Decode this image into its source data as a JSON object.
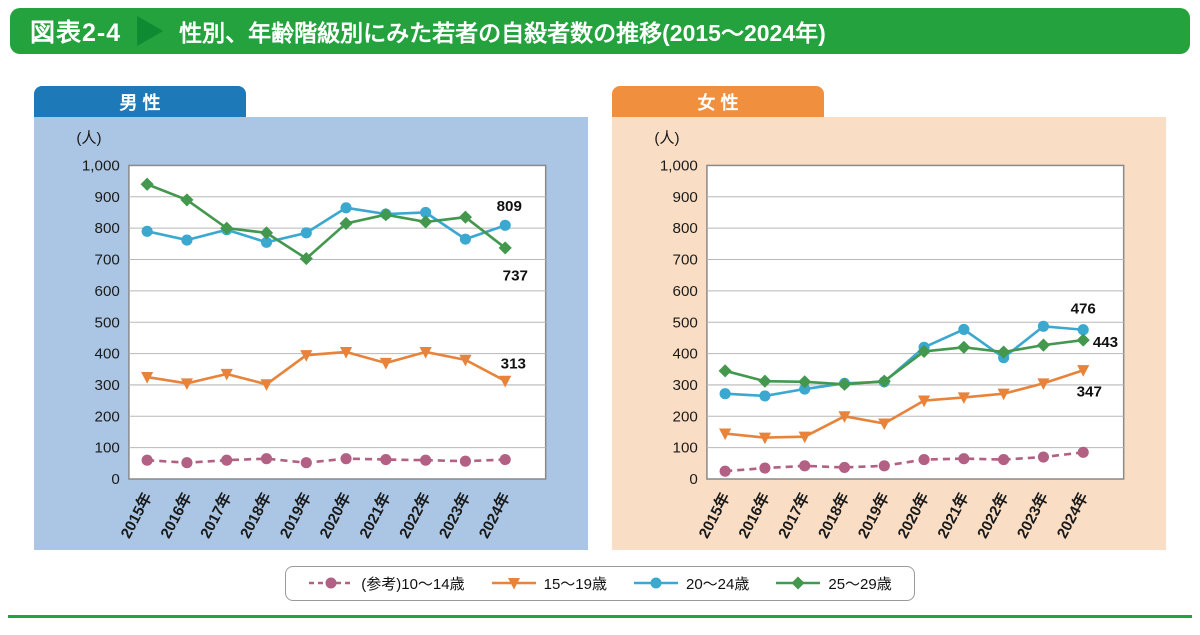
{
  "header": {
    "tag": "図表2-4",
    "title": "性別、年齢階級別にみた若者の自殺者数の推移(2015〜2024年)"
  },
  "colors": {
    "header_green": "#23a23d",
    "header_green_dark": "#0e8a33",
    "male_tab": "#1d79b8",
    "male_panel": "#aac6e4",
    "female_tab": "#f0903e",
    "female_panel": "#f9dec5",
    "age_10_14": "#b26084",
    "age_15_19": "#e8833b",
    "age_20_24": "#3ba8d0",
    "age_25_29": "#44984e",
    "grid_line": "#b8b8b8",
    "plot_border": "#8a8a8a"
  },
  "legend": {
    "items": [
      {
        "label": "(参考)10〜14歳",
        "marker": "circle",
        "dashed": true,
        "color_key": "age_10_14"
      },
      {
        "label": "15〜19歳",
        "marker": "triangle",
        "dashed": false,
        "color_key": "age_15_19"
      },
      {
        "label": "20〜24歳",
        "marker": "circle",
        "dashed": false,
        "color_key": "age_20_24"
      },
      {
        "label": "25〜29歳",
        "marker": "diamond",
        "dashed": false,
        "color_key": "age_25_29"
      }
    ]
  },
  "chart_data": [
    {
      "type": "line",
      "panel": "male",
      "panel_label": "男 性",
      "unit_label": "(人)",
      "ylim": [
        0,
        1000
      ],
      "ytick_interval": 100,
      "grid": true,
      "x": [
        "2015年",
        "2016年",
        "2017年",
        "2018年",
        "2019年",
        "2020年",
        "2021年",
        "2022年",
        "2023年",
        "2024年"
      ],
      "series": [
        {
          "name": "(参考)10〜14歳",
          "color_key": "age_10_14",
          "marker": "circle",
          "dashed": true,
          "values": [
            60,
            52,
            60,
            65,
            52,
            65,
            62,
            60,
            57,
            62
          ]
        },
        {
          "name": "15〜19歳",
          "color_key": "age_15_19",
          "marker": "triangle",
          "dashed": false,
          "values": [
            325,
            305,
            335,
            302,
            395,
            405,
            370,
            405,
            380,
            313
          ],
          "end_label": "313",
          "label_dx": 8,
          "label_dy": -12
        },
        {
          "name": "20〜24歳",
          "color_key": "age_20_24",
          "marker": "circle",
          "dashed": false,
          "values": [
            790,
            762,
            795,
            755,
            785,
            865,
            845,
            850,
            765,
            809
          ],
          "end_label": "809",
          "label_dx": 4,
          "label_dy": -14
        },
        {
          "name": "25〜29歳",
          "color_key": "age_25_29",
          "marker": "diamond",
          "dashed": false,
          "values": [
            940,
            890,
            800,
            785,
            703,
            815,
            843,
            820,
            835,
            737
          ],
          "end_label": "737",
          "label_dx": 10,
          "label_dy": 32
        }
      ]
    },
    {
      "type": "line",
      "panel": "female",
      "panel_label": "女 性",
      "unit_label": "(人)",
      "ylim": [
        0,
        1000
      ],
      "ytick_interval": 100,
      "grid": true,
      "x": [
        "2015年",
        "2016年",
        "2017年",
        "2018年",
        "2019年",
        "2020年",
        "2021年",
        "2022年",
        "2023年",
        "2024年"
      ],
      "series": [
        {
          "name": "(参考)10〜14歳",
          "color_key": "age_10_14",
          "marker": "circle",
          "dashed": true,
          "values": [
            25,
            35,
            42,
            37,
            42,
            62,
            65,
            62,
            70,
            85
          ]
        },
        {
          "name": "15〜19歳",
          "color_key": "age_15_19",
          "marker": "triangle",
          "dashed": false,
          "values": [
            145,
            132,
            135,
            200,
            177,
            250,
            260,
            272,
            305,
            347
          ],
          "end_label": "347",
          "label_dx": 6,
          "label_dy": 26
        },
        {
          "name": "20〜24歳",
          "color_key": "age_20_24",
          "marker": "circle",
          "dashed": false,
          "values": [
            272,
            265,
            287,
            305,
            310,
            420,
            477,
            387,
            487,
            476
          ],
          "end_label": "476",
          "label_dx": 0,
          "label_dy": -16
        },
        {
          "name": "25〜29歳",
          "color_key": "age_25_29",
          "marker": "diamond",
          "dashed": false,
          "values": [
            345,
            312,
            310,
            302,
            312,
            407,
            420,
            405,
            427,
            443
          ],
          "end_label": "443",
          "label_dx": 22,
          "label_dy": 7
        }
      ]
    }
  ]
}
